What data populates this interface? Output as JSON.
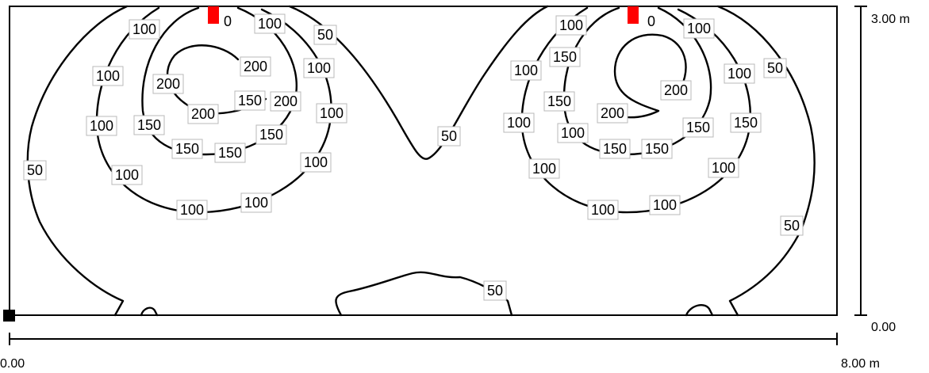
{
  "dimensions": {
    "width_label": "8.00 m",
    "height_label": "3.00 m",
    "x_origin_label": "0.00",
    "y_origin_label": "0.00"
  },
  "colors": {
    "luminaire": "#ff0000",
    "reference_marker": "#000000",
    "contour": "#000000"
  },
  "isolines": [
    0,
    50,
    100,
    150,
    200
  ],
  "contour_labels": [
    {
      "value": "0"
    },
    {
      "value": "100"
    },
    {
      "value": "100"
    },
    {
      "value": "50"
    },
    {
      "value": "100"
    },
    {
      "value": "200"
    },
    {
      "value": "100"
    },
    {
      "value": "200"
    },
    {
      "value": "200"
    },
    {
      "value": "150"
    },
    {
      "value": "200"
    },
    {
      "value": "100"
    },
    {
      "value": "100"
    },
    {
      "value": "150"
    },
    {
      "value": "150"
    },
    {
      "value": "150"
    },
    {
      "value": "150"
    },
    {
      "value": "100"
    },
    {
      "value": "100"
    },
    {
      "value": "100"
    },
    {
      "value": "100"
    },
    {
      "value": "50"
    },
    {
      "value": "50"
    },
    {
      "value": "50"
    },
    {
      "value": "0"
    },
    {
      "value": "100"
    },
    {
      "value": "100"
    },
    {
      "value": "150"
    },
    {
      "value": "50"
    },
    {
      "value": "100"
    },
    {
      "value": "100"
    },
    {
      "value": "150"
    },
    {
      "value": "200"
    },
    {
      "value": "200"
    },
    {
      "value": "100"
    },
    {
      "value": "150"
    },
    {
      "value": "150"
    },
    {
      "value": "100"
    },
    {
      "value": "150"
    },
    {
      "value": "150"
    },
    {
      "value": "100"
    },
    {
      "value": "100"
    },
    {
      "value": "100"
    },
    {
      "value": "100"
    },
    {
      "value": "50"
    }
  ]
}
